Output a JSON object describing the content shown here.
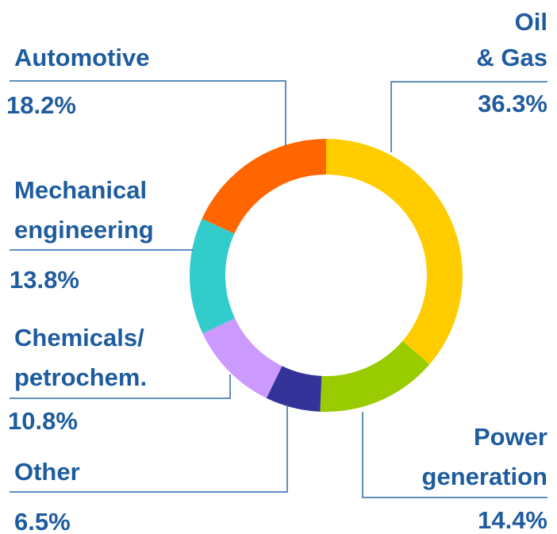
{
  "chart_data": {
    "type": "donut",
    "categories": [
      [
        "Oil",
        "& Gas"
      ],
      [
        "Power",
        "generation"
      ],
      [
        "Other"
      ],
      [
        "Chemicals/",
        "petrochem."
      ],
      [
        "Mechanical",
        "engineering"
      ],
      [
        "Automotive"
      ]
    ],
    "values": [
      36.3,
      14.4,
      6.5,
      10.8,
      13.8,
      18.2
    ],
    "value_labels": [
      "36.3%",
      "14.4%",
      "6.5%",
      "10.8%",
      "13.8%",
      "18.2%"
    ],
    "colors": [
      "#ffcc00",
      "#99cc00",
      "#333399",
      "#cc99ff",
      "#33cccc",
      "#ff6600"
    ]
  }
}
